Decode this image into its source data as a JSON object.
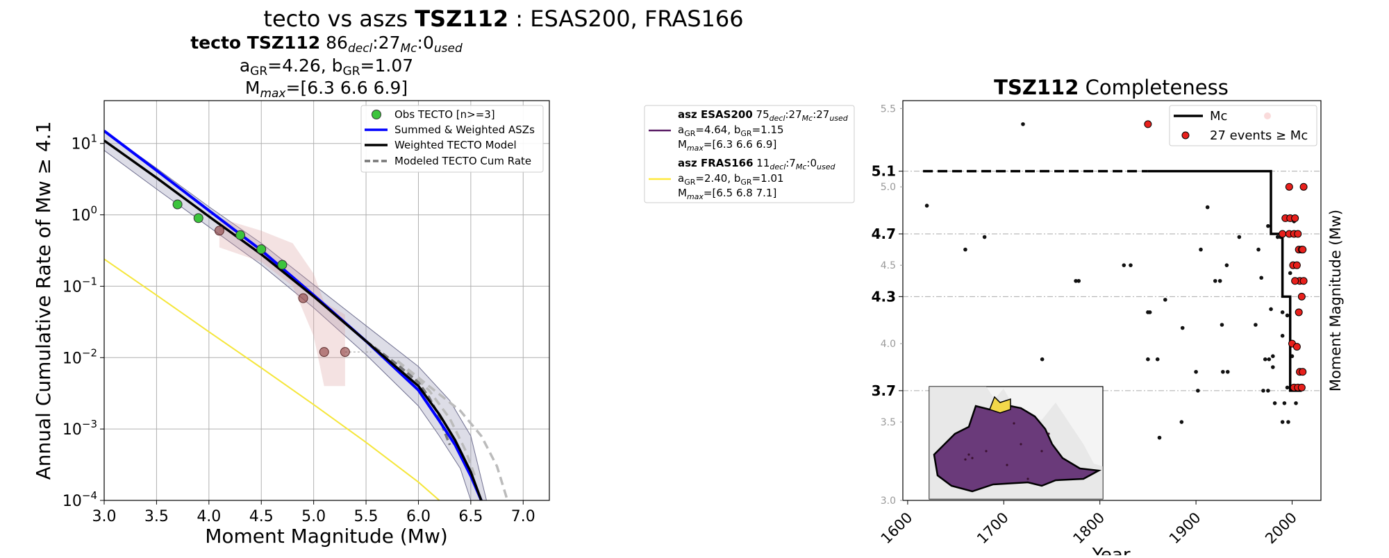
{
  "figure_title": {
    "prefix": "tecto vs aszs ",
    "zone": "TSZ112",
    "suffix": " : ESAS200, FRAS166"
  },
  "left_header": {
    "line1_bold": "tecto TSZ112",
    "line1_n1": "86",
    "line1_s1": "decl",
    "line1_n2": ":27",
    "line1_s2": "Mc",
    "line1_n3": ":0",
    "line1_s3": "used",
    "line2_a": "a",
    "line2_a_sub": "GR",
    "line2_a_val": "=4.26,  b",
    "line2_b_sub": "GR",
    "line2_b_val": "=1.07",
    "line3_m": "M",
    "line3_sub": "max",
    "line3_val": "=[6.3 6.6 6.9]"
  },
  "asz_legend": [
    {
      "color": "#5b1e66",
      "bold": "asz ESAS200",
      "n1": " 75",
      "s1": "decl",
      "n2": ":27",
      "s2": "Mc",
      "n3": ":27",
      "s3": "used",
      "a_val": "=4.64,  b",
      "b_val": "=1.15",
      "mmax": "=[6.3 6.6 6.9]"
    },
    {
      "color": "#ffe93a",
      "bold": "asz FRAS166",
      "n1": " 11",
      "s1": "decl",
      "n2": ":7",
      "s2": "Mc",
      "n3": ":0",
      "s3": "used",
      "a_val": "=2.40,  b",
      "b_val": "=1.01",
      "mmax": "=[6.5 6.8 7.1]"
    }
  ],
  "chart_data": [
    {
      "type": "line",
      "xlabel": "Moment Magnitude (Mw)",
      "ylabel": "Annual Cumulative Rate of Mw  ≥  4.1",
      "xlim": [
        3.0,
        7.25
      ],
      "ylim_log10": [
        -4,
        1.6
      ],
      "yscale": "log",
      "grid": true,
      "legend_position": "top-right",
      "x_ticks": [
        "3.0",
        "3.5",
        "4.0",
        "4.5",
        "5.0",
        "5.5",
        "6.0",
        "6.5",
        "7.0"
      ],
      "y_ticks": [
        {
          "base": "10",
          "exp": "1"
        },
        {
          "base": "10",
          "exp": "0"
        },
        {
          "base": "10",
          "exp": "−1"
        },
        {
          "base": "10",
          "exp": "−2"
        },
        {
          "base": "10",
          "exp": "−3"
        },
        {
          "base": "10",
          "exp": "−4"
        }
      ],
      "legend": [
        "Obs TECTO [n>=3]",
        "Summed & Weighted ASZs",
        "Weighted TECTO Model",
        "Modeled TECTO Cum Rate"
      ],
      "obs_tecto": {
        "x": [
          3.7,
          3.9,
          4.3,
          4.5,
          4.7
        ],
        "y": [
          1.4,
          0.9,
          0.52,
          0.33,
          0.2
        ],
        "color": "#3cc43c"
      },
      "obs_other": {
        "x": [
          4.1,
          4.9,
          5.1,
          5.3
        ],
        "y": [
          0.6,
          0.068,
          0.012,
          0.012
        ],
        "color": "#8b3a3a"
      },
      "summed_asz": {
        "x": [
          3.0,
          3.5,
          4.0,
          4.5,
          5.0,
          5.5,
          6.0,
          6.2,
          6.35,
          6.5,
          6.6
        ],
        "y": [
          15,
          4.2,
          1.15,
          0.32,
          0.075,
          0.017,
          0.0035,
          0.0013,
          0.0006,
          0.00022,
          0.0001
        ],
        "color": "#0000ff"
      },
      "weighted_tecto": {
        "x": [
          3.0,
          3.5,
          4.0,
          4.5,
          5.0,
          5.5,
          6.0,
          6.2,
          6.35,
          6.5,
          6.6
        ],
        "y": [
          11,
          3.3,
          0.95,
          0.28,
          0.072,
          0.017,
          0.004,
          0.0016,
          0.0007,
          0.00025,
          0.0001
        ],
        "color": "#000000"
      },
      "modeled_tecto": {
        "x": [
          5.5,
          5.8,
          6.0,
          6.1,
          6.2,
          6.25,
          6.3
        ],
        "y": [
          0.017,
          0.008,
          0.0045,
          0.0028,
          0.0015,
          0.0009,
          0.0006
        ],
        "color": "#777777"
      },
      "dashed_upper": {
        "x": [
          5.8,
          6.1,
          6.4,
          6.6,
          6.75,
          6.85
        ],
        "y": [
          0.009,
          0.004,
          0.0018,
          0.0008,
          0.0003,
          0.0001
        ],
        "color": "#bbbbbb"
      },
      "dashed_mid": {
        "x": [
          5.8,
          6.1,
          6.3,
          6.45,
          6.55
        ],
        "y": [
          0.009,
          0.0035,
          0.0014,
          0.0005,
          0.0002
        ],
        "color": "#bbbbbb"
      },
      "fras166": {
        "x": [
          3.0,
          3.5,
          4.0,
          4.5,
          5.0,
          5.5,
          6.0,
          6.2
        ],
        "y": [
          0.24,
          0.075,
          0.023,
          0.0072,
          0.0022,
          0.00065,
          0.00018,
          0.0001
        ],
        "color": "#f5e63a"
      },
      "band_upper": {
        "x": [
          3.0,
          3.5,
          4.0,
          4.5,
          5.0,
          5.5,
          6.0,
          6.3,
          6.5,
          6.65
        ],
        "y": [
          15,
          4.5,
          1.3,
          0.4,
          0.105,
          0.028,
          0.0075,
          0.0025,
          0.0008,
          0.0001
        ]
      },
      "band_lower": {
        "x": [
          3.0,
          3.5,
          4.0,
          4.5,
          5.0,
          5.5,
          6.0,
          6.2,
          6.4,
          6.5
        ],
        "y": [
          8,
          2.3,
          0.68,
          0.2,
          0.05,
          0.011,
          0.0021,
          0.0008,
          0.00028,
          0.0001
        ]
      },
      "pink_band": [
        {
          "x": 4.1,
          "lo": 0.35,
          "hi": 0.9
        },
        {
          "x": 4.5,
          "lo": 0.22,
          "hi": 0.6
        },
        {
          "x": 4.8,
          "lo": 0.1,
          "hi": 0.4
        },
        {
          "x": 5.0,
          "lo": 0.02,
          "hi": 0.15
        },
        {
          "x": 5.1,
          "lo": 0.004,
          "hi": 0.06
        },
        {
          "x": 5.3,
          "lo": 0.004,
          "hi": 0.04
        }
      ]
    },
    {
      "type": "scatter",
      "title_bold": "TSZ112",
      "title_rest": " Completeness",
      "xlabel": "Year",
      "ylabel": "Moment Magnitude (Mw)",
      "xlim": [
        1595,
        2030
      ],
      "ylim": [
        3.0,
        5.55
      ],
      "x_ticks": [
        "1600",
        "1700",
        "1800",
        "1900",
        "2000"
      ],
      "y_minor_ticks": [
        "3.0",
        "3.5",
        "4.0",
        "4.5",
        "5.0",
        "5.5"
      ],
      "mc_levels": [
        "3.7",
        "4.3",
        "4.7",
        "5.1"
      ],
      "legend": [
        "Mc",
        "27 events ≥ Mc"
      ],
      "mc_step": {
        "x": [
          1616,
          1978,
          1978,
          1990,
          1990,
          1998,
          1998,
          2005,
          2005,
          2010
        ],
        "y": [
          5.1,
          5.1,
          4.7,
          4.7,
          4.3,
          4.3,
          3.7,
          3.7,
          3.7,
          3.7
        ]
      },
      "black_events": {
        "x": [
          1620,
          1660,
          1680,
          1720,
          1775,
          1778,
          1740,
          1825,
          1832,
          1850,
          1852,
          1860,
          1868,
          1850,
          1886,
          1900,
          1902,
          1912,
          1920,
          1925,
          1928,
          1932,
          1933,
          1945,
          1962,
          1965,
          1968,
          1970,
          1972,
          1975,
          1976,
          1982,
          1985,
          1988,
          1990,
          1992,
          1995,
          1996,
          1998,
          2000,
          2002,
          2004,
          1975,
          1990,
          1978,
          1980,
          1995,
          1862,
          1885,
          1990,
          1980,
          2000,
          1905,
          1927
        ],
        "y": [
          4.88,
          4.6,
          4.68,
          5.4,
          4.4,
          4.4,
          3.9,
          4.5,
          4.5,
          4.2,
          4.2,
          3.9,
          4.28,
          3.9,
          4.1,
          3.82,
          3.7,
          4.87,
          4.4,
          4.4,
          3.82,
          4.5,
          3.82,
          4.68,
          4.12,
          4.6,
          4.42,
          3.7,
          3.9,
          4.75,
          3.9,
          3.62,
          4.68,
          4.68,
          4.05,
          3.62,
          4.18,
          3.5,
          4.45,
          4.0,
          4.78,
          3.62,
          3.7,
          3.5,
          4.22,
          3.92,
          3.72,
          3.4,
          3.5,
          4.2,
          3.85,
          3.92,
          4.6,
          4.12
        ]
      },
      "red_events": {
        "x": [
          1850,
          1997,
          2012,
          1990,
          1993,
          1998,
          2003,
          1997,
          2002,
          2006,
          2007,
          2010,
          2011,
          2001,
          2005,
          2008,
          2012,
          2003,
          2007,
          2010,
          2000,
          2005,
          2008,
          2011,
          2002,
          2006,
          2010
        ],
        "y": [
          5.4,
          5.0,
          5.0,
          4.7,
          4.8,
          4.8,
          4.8,
          4.7,
          4.7,
          4.7,
          4.6,
          4.6,
          4.6,
          4.5,
          4.5,
          4.4,
          4.4,
          4.4,
          4.2,
          4.3,
          4.0,
          3.98,
          3.82,
          3.82,
          3.72,
          3.72,
          3.72
        ]
      }
    }
  ],
  "map_inset": {
    "land": "#e0e0e0",
    "zone_fill": "#6a3a7a",
    "zone2_fill": "#f3d84a"
  }
}
